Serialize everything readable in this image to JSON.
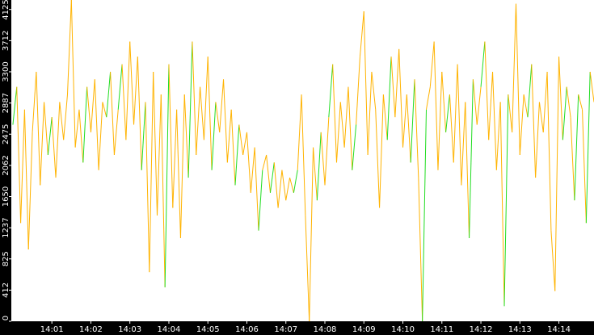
{
  "chart_data": {
    "type": "line",
    "color": "#ffb300",
    "up_color": "#22dd22",
    "axis_color": "#000000",
    "label_color": "#ffffff",
    "xlim": [
      -0.04,
      14.9
    ],
    "ylim": [
      0,
      4250
    ],
    "yticks": [
      0,
      412,
      825,
      1237,
      1650,
      2062,
      2475,
      2887,
      3300,
      3712,
      4125
    ],
    "xticks": [
      {
        "value": 1,
        "label": "14:01"
      },
      {
        "value": 2,
        "label": "14:02"
      },
      {
        "value": 3,
        "label": "14:03"
      },
      {
        "value": 4,
        "label": "14:04"
      },
      {
        "value": 5,
        "label": "14:05"
      },
      {
        "value": 6,
        "label": "14:06"
      },
      {
        "value": 7,
        "label": "14:07"
      },
      {
        "value": 8,
        "label": "14:08"
      },
      {
        "value": 9,
        "label": "14:09"
      },
      {
        "value": 10,
        "label": "14:10"
      },
      {
        "value": 11,
        "label": "14:11"
      },
      {
        "value": 12,
        "label": "14:12"
      },
      {
        "value": 13,
        "label": "14:13"
      },
      {
        "value": 14,
        "label": "14:14"
      }
    ],
    "x": [
      0.0,
      0.1,
      0.2,
      0.3,
      0.4,
      0.5,
      0.6,
      0.7,
      0.8,
      0.9,
      1.0,
      1.1,
      1.2,
      1.3,
      1.4,
      1.5,
      1.6,
      1.7,
      1.8,
      1.9,
      2.0,
      2.1,
      2.2,
      2.3,
      2.4,
      2.5,
      2.6,
      2.7,
      2.8,
      2.9,
      3.0,
      3.1,
      3.2,
      3.3,
      3.4,
      3.5,
      3.6,
      3.7,
      3.8,
      3.9,
      4.0,
      4.1,
      4.2,
      4.3,
      4.4,
      4.5,
      4.6,
      4.7,
      4.8,
      4.9,
      5.0,
      5.1,
      5.2,
      5.3,
      5.4,
      5.5,
      5.6,
      5.7,
      5.8,
      5.9,
      6.0,
      6.1,
      6.2,
      6.3,
      6.4,
      6.5,
      6.6,
      6.7,
      6.8,
      6.9,
      7.0,
      7.1,
      7.2,
      7.3,
      7.4,
      7.5,
      7.6,
      7.7,
      7.8,
      7.9,
      8.0,
      8.1,
      8.2,
      8.3,
      8.4,
      8.5,
      8.6,
      8.7,
      8.8,
      8.9,
      9.0,
      9.1,
      9.2,
      9.3,
      9.4,
      9.5,
      9.6,
      9.7,
      9.8,
      9.9,
      10.0,
      10.1,
      10.2,
      10.3,
      10.4,
      10.5,
      10.6,
      10.7,
      10.8,
      10.9,
      11.0,
      11.1,
      11.2,
      11.3,
      11.4,
      11.5,
      11.6,
      11.7,
      11.8,
      11.9,
      12.0,
      12.1,
      12.2,
      12.3,
      12.4,
      12.5,
      12.6,
      12.7,
      12.8,
      12.9,
      13.0,
      13.1,
      13.2,
      13.3,
      13.4,
      13.5,
      13.6,
      13.7,
      13.8,
      13.9,
      14.0,
      14.1,
      14.2,
      14.3,
      14.4,
      14.5,
      14.6,
      14.7,
      14.8,
      14.9
    ],
    "values": [
      2600,
      3100,
      1300,
      2800,
      950,
      2500,
      3300,
      1800,
      2900,
      2200,
      2700,
      1900,
      2900,
      2400,
      3000,
      4250,
      2300,
      2800,
      2100,
      3100,
      2500,
      3200,
      2000,
      2900,
      2700,
      3300,
      2200,
      2800,
      3400,
      2400,
      3700,
      2600,
      3500,
      2000,
      2900,
      650,
      3300,
      1400,
      3000,
      450,
      3400,
      1500,
      2800,
      1100,
      3000,
      1900,
      3700,
      2200,
      3100,
      2400,
      3500,
      2000,
      2900,
      2500,
      3200,
      2100,
      2800,
      1800,
      2600,
      2200,
      2500,
      1700,
      2300,
      1200,
      2000,
      2200,
      1700,
      2100,
      1500,
      2000,
      1600,
      1900,
      1700,
      2000,
      3000,
      1400,
      0,
      2300,
      1600,
      2500,
      1800,
      2700,
      3400,
      2100,
      2900,
      2300,
      3100,
      2000,
      2600,
      3500,
      4100,
      2200,
      3300,
      2800,
      1500,
      3000,
      2400,
      3500,
      2700,
      3600,
      2300,
      3000,
      2100,
      3200,
      1900,
      0,
      2800,
      3100,
      3700,
      2000,
      3300,
      2500,
      3000,
      2100,
      3400,
      1800,
      2900,
      1100,
      3200,
      2600,
      3100,
      3700,
      2400,
      3300,
      2000,
      2900,
      200,
      3000,
      2500,
      4200,
      2200,
      3000,
      2700,
      3400,
      1900,
      2900,
      2500,
      3300,
      1200,
      400,
      3500,
      2400,
      3100,
      2700,
      1600,
      3000,
      2800,
      1300,
      3300,
      2900
    ]
  }
}
